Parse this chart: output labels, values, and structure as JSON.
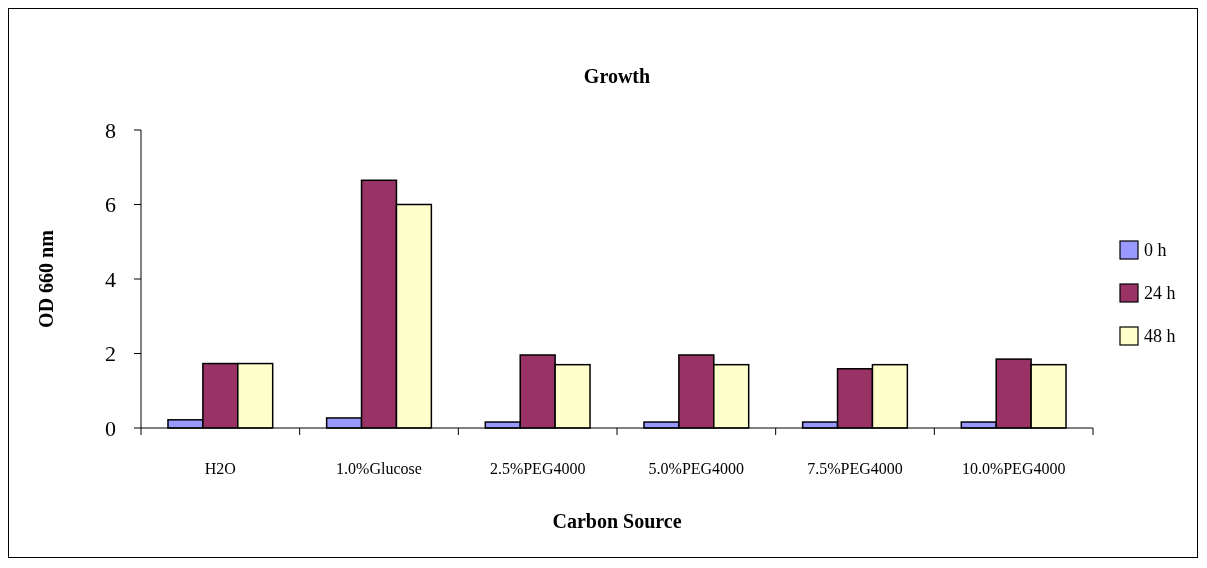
{
  "chart_data": {
    "type": "bar",
    "title": "Growth",
    "xlabel": "Carbon Source",
    "ylabel": "OD 660 nm",
    "categories": [
      "H2O",
      "1.0%Glucose",
      "2.5%PEG4000",
      "5.0%PEG4000",
      "7.5%PEG4000",
      "10.0%PEG4000"
    ],
    "series": [
      {
        "name": "0 h",
        "color": "#9999ff",
        "values": [
          0.22,
          0.27,
          0.16,
          0.16,
          0.16,
          0.16
        ]
      },
      {
        "name": "24 h",
        "color": "#993366",
        "values": [
          1.73,
          6.65,
          1.96,
          1.96,
          1.59,
          1.85
        ]
      },
      {
        "name": "48 h",
        "color": "#ffffcc",
        "values": [
          1.73,
          6.0,
          1.7,
          1.7,
          1.7,
          1.7
        ]
      }
    ],
    "ylim": [
      0,
      8
    ],
    "yticks": [
      0,
      2,
      4,
      6,
      8
    ],
    "grid": false,
    "legend": "right"
  }
}
